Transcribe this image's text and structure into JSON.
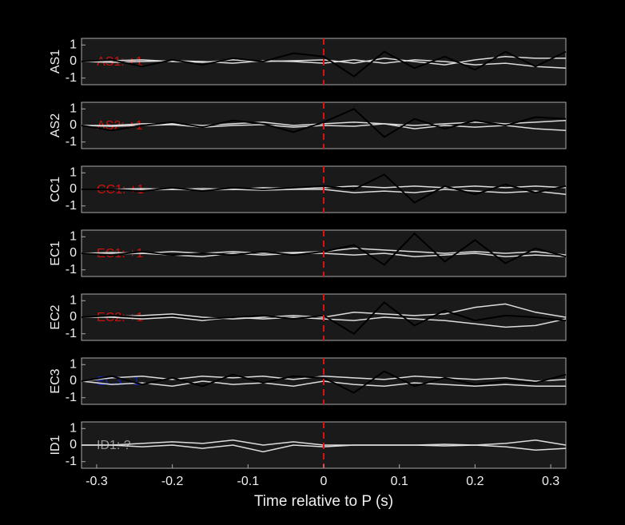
{
  "chart_data": [
    {
      "type": "line",
      "ylabel": "AS1",
      "annotation": "AS1: +1",
      "annotation_color": "#cc1111",
      "vline": 0,
      "vline_color": "#dd1111",
      "xlim": [
        -0.32,
        0.32
      ],
      "ylim": [
        -1.4,
        1.4
      ],
      "yticks": [
        -1,
        0,
        1
      ],
      "x": [
        -0.32,
        -0.28,
        -0.24,
        -0.2,
        -0.16,
        -0.12,
        -0.08,
        -0.04,
        0,
        0.04,
        0.08,
        0.12,
        0.16,
        0.2,
        0.24,
        0.28,
        0.32
      ],
      "series": [
        {
          "color": "#dddddd",
          "values": [
            0,
            0.05,
            0.1,
            0,
            -0.05,
            0.1,
            0,
            0.05,
            0.1,
            -0.1,
            0.2,
            0,
            -0.2,
            0.1,
            0.3,
            0.2,
            0.2
          ]
        },
        {
          "color": "#dddddd",
          "values": [
            0,
            -0.05,
            0,
            0.05,
            0,
            -0.1,
            0.05,
            0,
            -0.1,
            0.1,
            -0.1,
            0.1,
            0,
            -0.2,
            -0.1,
            -0.3,
            -0.4
          ]
        },
        {
          "color": "#000000",
          "values": [
            0,
            0.1,
            -0.3,
            0.1,
            -0.2,
            0.2,
            0,
            0.5,
            0.3,
            -0.9,
            0.6,
            -0.4,
            0.3,
            -0.5,
            0.6,
            -0.3,
            0.6
          ]
        }
      ]
    },
    {
      "type": "line",
      "ylabel": "AS2",
      "annotation": "AS2: +1",
      "annotation_color": "#cc1111",
      "vline": 0,
      "vline_color": "#dd1111",
      "xlim": [
        -0.32,
        0.32
      ],
      "ylim": [
        -1.4,
        1.4
      ],
      "yticks": [
        -1,
        0,
        1
      ],
      "x": [
        -0.32,
        -0.28,
        -0.24,
        -0.2,
        -0.16,
        -0.12,
        -0.08,
        -0.04,
        0,
        0.04,
        0.08,
        0.12,
        0.16,
        0.2,
        0.24,
        0.28,
        0.32
      ],
      "series": [
        {
          "color": "#dddddd",
          "values": [
            0,
            0,
            0.1,
            0.1,
            0,
            0.1,
            0.2,
            0,
            0.1,
            0.2,
            0.1,
            0,
            0.1,
            0.2,
            0.1,
            0.2,
            0.3
          ]
        },
        {
          "color": "#dddddd",
          "values": [
            0,
            -0.05,
            0,
            0.05,
            -0.1,
            0,
            0.05,
            -0.1,
            0,
            -0.05,
            0.1,
            -0.2,
            0,
            -0.1,
            0,
            -0.2,
            -0.3
          ]
        },
        {
          "color": "#000000",
          "values": [
            0,
            -0.3,
            0,
            0.2,
            -0.1,
            0.3,
            0.1,
            -0.4,
            0.2,
            1.0,
            -0.7,
            0.4,
            -0.2,
            0.3,
            0,
            0.5,
            0.4
          ]
        }
      ]
    },
    {
      "type": "line",
      "ylabel": "CC1",
      "annotation": "CC1: +1",
      "annotation_color": "#cc1111",
      "vline": 0,
      "vline_color": "#dd1111",
      "xlim": [
        -0.32,
        0.32
      ],
      "ylim": [
        -1.4,
        1.4
      ],
      "yticks": [
        -1,
        0,
        1
      ],
      "x": [
        -0.32,
        -0.28,
        -0.24,
        -0.2,
        -0.16,
        -0.12,
        -0.08,
        -0.04,
        0,
        0.04,
        0.08,
        0.12,
        0.16,
        0.2,
        0.24,
        0.28,
        0.32
      ],
      "series": [
        {
          "color": "#dddddd",
          "values": [
            0,
            0,
            0.05,
            0,
            0.05,
            0,
            0.1,
            0.05,
            0.1,
            0.2,
            0.1,
            0.2,
            0.1,
            0.2,
            0.1,
            0.2,
            0.1
          ]
        },
        {
          "color": "#dddddd",
          "values": [
            0,
            0,
            -0.05,
            0,
            -0.05,
            0,
            -0.05,
            0,
            0,
            -0.2,
            -0.1,
            -0.2,
            0,
            -0.1,
            -0.2,
            -0.1,
            -0.3
          ]
        },
        {
          "color": "#000000",
          "values": [
            0,
            0,
            -0.1,
            0.1,
            -0.1,
            0.1,
            0,
            0.1,
            0.2,
            0,
            0.9,
            -0.8,
            0.2,
            -0.3,
            0.3,
            -0.2,
            0.2
          ]
        }
      ]
    },
    {
      "type": "line",
      "ylabel": "EC1",
      "annotation": "EC1: +1",
      "annotation_color": "#cc1111",
      "vline": 0,
      "vline_color": "#dd1111",
      "xlim": [
        -0.32,
        0.32
      ],
      "ylim": [
        -1.4,
        1.4
      ],
      "yticks": [
        -1,
        0,
        1
      ],
      "x": [
        -0.32,
        -0.28,
        -0.24,
        -0.2,
        -0.16,
        -0.12,
        -0.08,
        -0.04,
        0,
        0.04,
        0.08,
        0.12,
        0.16,
        0.2,
        0.24,
        0.28,
        0.32
      ],
      "series": [
        {
          "color": "#dddddd",
          "values": [
            0,
            0.05,
            0,
            0.1,
            0,
            0.1,
            0,
            0.05,
            0.1,
            0.3,
            0.2,
            0.1,
            0,
            0.1,
            0,
            0.1,
            -0.1
          ]
        },
        {
          "color": "#dddddd",
          "values": [
            0,
            -0.05,
            0,
            -0.1,
            -0.2,
            0,
            -0.1,
            0,
            0,
            -0.1,
            0,
            -0.2,
            -0.1,
            0,
            -0.2,
            -0.1,
            -0.2
          ]
        },
        {
          "color": "#000000",
          "values": [
            0,
            -0.1,
            0.1,
            -0.1,
            0,
            -0.1,
            0.1,
            -0.1,
            0.1,
            0.5,
            -0.7,
            1.2,
            -0.5,
            0.8,
            -0.6,
            0.3,
            -0.2
          ]
        }
      ]
    },
    {
      "type": "line",
      "ylabel": "EC2",
      "annotation": "EC2: +1",
      "annotation_color": "#cc1111",
      "vline": 0,
      "vline_color": "#dd1111",
      "xlim": [
        -0.32,
        0.32
      ],
      "ylim": [
        -1.4,
        1.4
      ],
      "yticks": [
        -1,
        0,
        1
      ],
      "x": [
        -0.32,
        -0.28,
        -0.24,
        -0.2,
        -0.16,
        -0.12,
        -0.08,
        -0.04,
        0,
        0.04,
        0.08,
        0.12,
        0.16,
        0.2,
        0.24,
        0.28,
        0.32
      ],
      "series": [
        {
          "color": "#dddddd",
          "values": [
            0,
            0.05,
            0.1,
            0.2,
            0,
            -0.1,
            0,
            0.1,
            0,
            0.3,
            0.2,
            0.1,
            0.2,
            0.6,
            0.8,
            0.3,
            0
          ]
        },
        {
          "color": "#dddddd",
          "values": [
            0,
            0,
            -0.1,
            0,
            -0.2,
            0,
            -0.1,
            0,
            -0.1,
            -0.2,
            0,
            -0.1,
            -0.2,
            -0.4,
            -0.6,
            -0.5,
            -0.1
          ]
        },
        {
          "color": "#000000",
          "values": [
            0,
            0.1,
            0,
            0.1,
            -0.1,
            0,
            0.1,
            -0.1,
            0.1,
            -1.0,
            0.9,
            -0.5,
            0.4,
            -0.2,
            0.1,
            0,
            -0.2
          ]
        }
      ]
    },
    {
      "type": "line",
      "ylabel": "EC3",
      "annotation": "EC3: -1",
      "annotation_color": "#1122aa",
      "vline": 0,
      "vline_color": "#dd1111",
      "xlim": [
        -0.32,
        0.32
      ],
      "ylim": [
        -1.4,
        1.4
      ],
      "yticks": [
        -1,
        0,
        1
      ],
      "x": [
        -0.32,
        -0.28,
        -0.24,
        -0.2,
        -0.16,
        -0.12,
        -0.08,
        -0.04,
        0,
        0.04,
        0.08,
        0.12,
        0.16,
        0.2,
        0.24,
        0.28,
        0.32
      ],
      "series": [
        {
          "color": "#dddddd",
          "values": [
            0,
            0.2,
            0.3,
            0.1,
            0.3,
            0.2,
            0.3,
            0.1,
            0.3,
            0.2,
            0.1,
            0.3,
            0.2,
            0.1,
            0.2,
            0,
            0.1
          ]
        },
        {
          "color": "#dddddd",
          "values": [
            0,
            -0.2,
            -0.1,
            -0.3,
            0,
            -0.2,
            -0.1,
            -0.3,
            0,
            -0.2,
            -0.3,
            -0.1,
            -0.2,
            -0.3,
            -0.2,
            -0.3,
            -0.3
          ]
        },
        {
          "color": "#000000",
          "values": [
            0,
            0.3,
            -0.2,
            0.2,
            -0.3,
            0.4,
            -0.1,
            0.3,
            0.2,
            -0.7,
            0.6,
            -0.3,
            0.2,
            -0.2,
            0,
            -0.1,
            0.4
          ]
        }
      ]
    },
    {
      "type": "line",
      "ylabel": "ID1",
      "annotation": "ID1: ?",
      "annotation_color": "#999999",
      "vline": 0,
      "vline_color": "#dd1111",
      "xlim": [
        -0.32,
        0.32
      ],
      "ylim": [
        -1.4,
        1.4
      ],
      "yticks": [
        -1,
        0,
        1
      ],
      "xticks": [
        -0.3,
        -0.2,
        -0.1,
        0,
        0.1,
        0.2,
        0.3
      ],
      "xlabel": "Time relative to P (s)",
      "x": [
        -0.32,
        -0.28,
        -0.24,
        -0.2,
        -0.16,
        -0.12,
        -0.08,
        -0.04,
        0,
        0.04,
        0.08,
        0.12,
        0.16,
        0.2,
        0.24,
        0.28,
        0.32
      ],
      "series": [
        {
          "color": "#dddddd",
          "values": [
            0,
            0,
            0.1,
            0.2,
            0.1,
            0.3,
            0,
            0.2,
            0,
            0,
            0,
            0,
            0.05,
            0,
            0.1,
            0.3,
            0
          ]
        },
        {
          "color": "#dddddd",
          "values": [
            0,
            0,
            -0.1,
            0,
            -0.2,
            0,
            -0.4,
            0,
            -0.1,
            0,
            0,
            0,
            -0.05,
            0,
            -0.1,
            -0.3,
            -0.2
          ]
        }
      ]
    }
  ]
}
